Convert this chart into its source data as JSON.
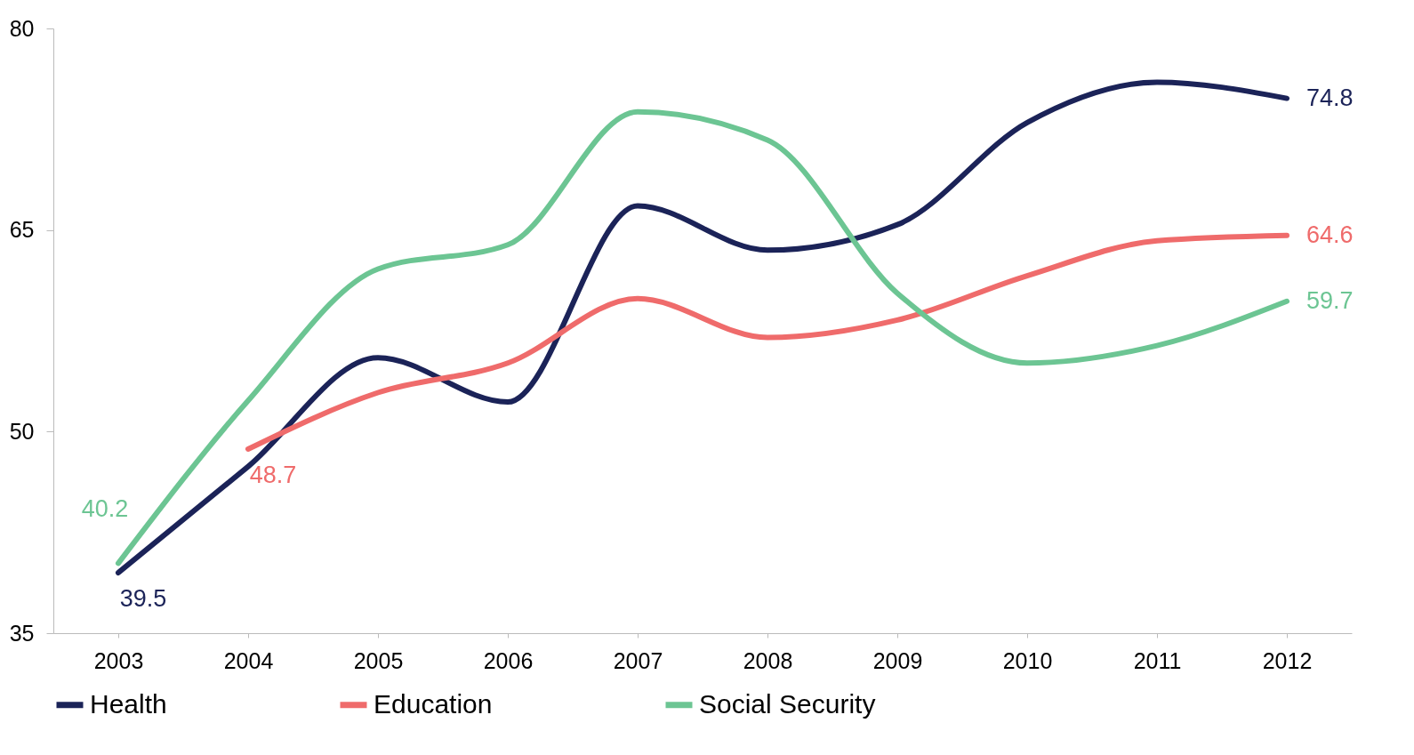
{
  "chart_data": {
    "type": "line",
    "categories": [
      "2003",
      "2004",
      "2005",
      "2006",
      "2007",
      "2008",
      "2009",
      "2010",
      "2011",
      "2012"
    ],
    "ylim": [
      35,
      80
    ],
    "yticks": [
      35,
      50,
      65,
      80
    ],
    "grid": false,
    "legend": "bottom",
    "marker": "none",
    "line_style": "solid",
    "series": [
      {
        "name": "Health",
        "color": "#1b2358",
        "values": [
          39.5,
          47.4,
          55.5,
          52.2,
          66.8,
          63.5,
          65.4,
          73.0,
          76.0,
          74.8
        ],
        "value_labels": [
          "39.5",
          null,
          null,
          null,
          null,
          null,
          null,
          null,
          null,
          "74.8"
        ]
      },
      {
        "name": "Education",
        "color": "#ef6b6b",
        "values": [
          null,
          48.7,
          52.9,
          55.1,
          59.9,
          57.0,
          58.3,
          61.6,
          64.2,
          64.6
        ],
        "value_labels": [
          null,
          "48.7",
          null,
          null,
          null,
          null,
          null,
          null,
          null,
          "64.6"
        ]
      },
      {
        "name": "Social Security",
        "color": "#6cc593",
        "values": [
          40.2,
          52.3,
          62.1,
          63.9,
          73.8,
          71.7,
          60.3,
          55.1,
          56.4,
          59.7
        ],
        "value_labels": [
          "40.2",
          null,
          null,
          null,
          null,
          null,
          null,
          null,
          null,
          "59.7"
        ]
      }
    ]
  }
}
